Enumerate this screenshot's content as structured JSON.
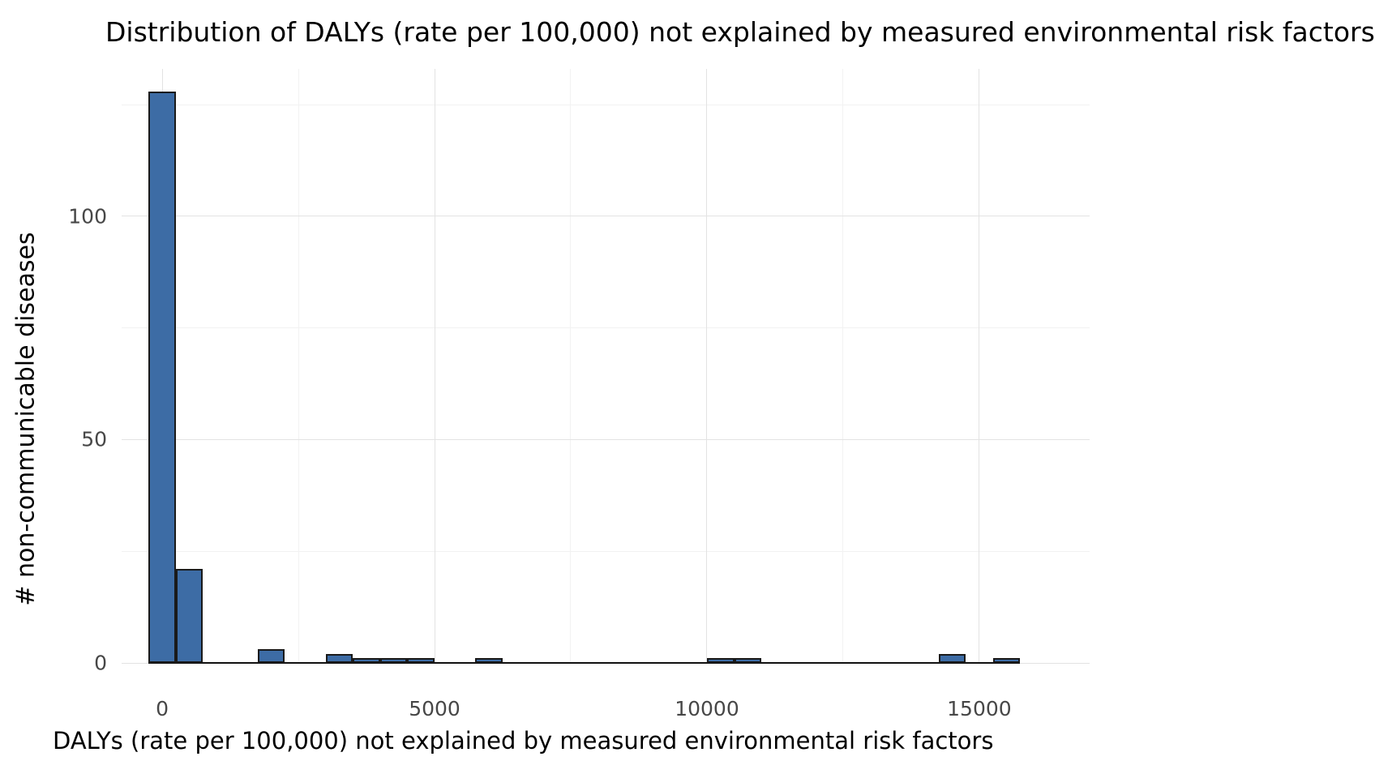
{
  "chart_data": {
    "type": "bar",
    "subtype": "histogram",
    "title": "Distribution of DALYs (rate per 100,000) not explained by measured environmental risk factors",
    "xlabel": "DALYs (rate per 100,000) not explained by measured environmental risk factors",
    "ylabel": "# non-communicable diseases",
    "bin_width": 500,
    "bars": [
      {
        "from": -250,
        "to": 250,
        "count": 128
      },
      {
        "from": 250,
        "to": 750,
        "count": 21
      },
      {
        "from": 1750,
        "to": 2250,
        "count": 3
      },
      {
        "from": 3000,
        "to": 3500,
        "count": 2
      },
      {
        "from": 3500,
        "to": 4000,
        "count": 1
      },
      {
        "from": 4000,
        "to": 4500,
        "count": 1
      },
      {
        "from": 4500,
        "to": 5000,
        "count": 1
      },
      {
        "from": 5750,
        "to": 6250,
        "count": 1
      },
      {
        "from": 10000,
        "to": 10500,
        "count": 1
      },
      {
        "from": 10500,
        "to": 11000,
        "count": 1
      },
      {
        "from": 14250,
        "to": 14750,
        "count": 2
      },
      {
        "from": 15250,
        "to": 15750,
        "count": 1
      }
    ],
    "baseline": {
      "from": -250,
      "to": 15750
    },
    "xlim": [
      -745,
      17025
    ],
    "ylim": [
      0,
      133
    ],
    "x_ticks": [
      {
        "value": 0,
        "label": "0"
      },
      {
        "value": 5000,
        "label": "5000"
      },
      {
        "value": 10000,
        "label": "10000"
      },
      {
        "value": 15000,
        "label": "15000"
      }
    ],
    "y_ticks": [
      {
        "value": 0,
        "label": "0"
      },
      {
        "value": 50,
        "label": "50"
      },
      {
        "value": 100,
        "label": "100"
      }
    ],
    "x_minor_gridlines": [
      2500,
      7500,
      12500
    ],
    "y_minor_gridlines": [
      25,
      75,
      125
    ],
    "grid": true,
    "legend": "none",
    "bar_fill": "#3D6CA5",
    "bar_stroke": "#1A1A1A",
    "grid_major_color": "#e3e3e3",
    "grid_minor_color": "#f2f2f2"
  }
}
